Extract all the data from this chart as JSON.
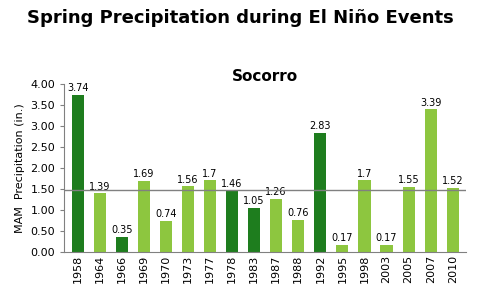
{
  "title": "Spring Precipitation during El Niño Events",
  "subtitle": "Socorro",
  "ylabel": "MAM  Precipitation (in.)",
  "years": [
    "1958",
    "1964",
    "1966",
    "1969",
    "1970",
    "1973",
    "1977",
    "1978",
    "1983",
    "1987",
    "1988",
    "1992",
    "1995",
    "1998",
    "2003",
    "2005",
    "2007",
    "2010"
  ],
  "values": [
    3.74,
    1.39,
    0.35,
    1.69,
    0.74,
    1.56,
    1.7,
    1.46,
    1.05,
    1.26,
    0.76,
    2.83,
    0.17,
    1.7,
    0.17,
    1.55,
    3.39,
    1.52
  ],
  "colors": [
    "#1e7d1e",
    "#8dc63f",
    "#1e7d1e",
    "#8dc63f",
    "#8dc63f",
    "#8dc63f",
    "#8dc63f",
    "#1e7d1e",
    "#1e7d1e",
    "#8dc63f",
    "#8dc63f",
    "#1e7d1e",
    "#8dc63f",
    "#8dc63f",
    "#8dc63f",
    "#8dc63f",
    "#8dc63f",
    "#8dc63f"
  ],
  "reference_line": 1.47,
  "ylim": [
    0.0,
    4.0
  ],
  "yticks": [
    0.0,
    0.5,
    1.0,
    1.5,
    2.0,
    2.5,
    3.0,
    3.5,
    4.0
  ],
  "background_color": "#ffffff",
  "title_fontsize": 13,
  "subtitle_fontsize": 11,
  "label_fontsize": 7,
  "ylabel_fontsize": 8,
  "tick_fontsize": 8
}
